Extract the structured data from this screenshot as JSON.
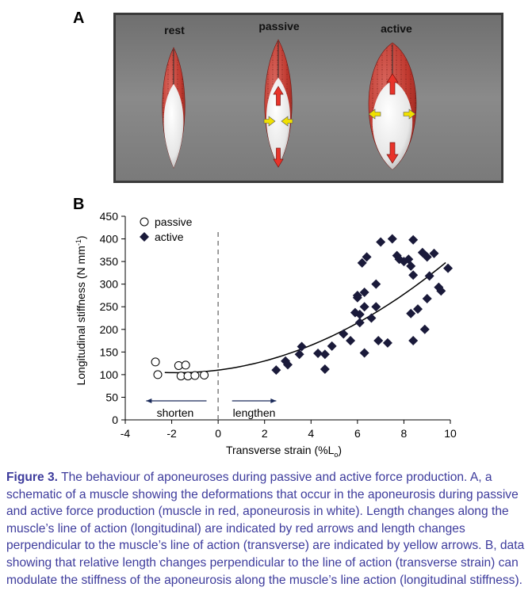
{
  "panel_a": {
    "letter": "A",
    "labels": {
      "rest": "rest",
      "passive": "passive",
      "active": "active"
    },
    "colors": {
      "muscle": "#c5423c",
      "aponeurosis": "#f2f2f2",
      "background": "#7d7d7d",
      "longitudinal_arrow": "#e8332a",
      "transverse_arrow": "#f0e000"
    }
  },
  "panel_b": {
    "letter": "B",
    "shorten_label": "shorten",
    "lengthen_label": "lengthen"
  },
  "chart_data": {
    "type": "scatter",
    "xlabel": "Transverse strain (%L",
    "xlabel_sub": "o",
    "xlabel_end": ")",
    "ylabel": "Longitudinal stiffness (N mm",
    "ylabel_sup": "-1",
    "ylabel_end": ")",
    "xlim": [
      -4,
      10
    ],
    "ylim": [
      0,
      450
    ],
    "xticks": [
      "-4",
      "-2",
      "0",
      "2",
      "4",
      "6",
      "8",
      "10"
    ],
    "xtick_values": [
      -4,
      -2,
      0,
      2,
      4,
      6,
      8,
      10
    ],
    "yticks": [
      "0",
      "50",
      "100",
      "150",
      "200",
      "250",
      "300",
      "350",
      "400",
      "450"
    ],
    "ytick_values": [
      0,
      50,
      100,
      150,
      200,
      250,
      300,
      350,
      400,
      450
    ],
    "legend_position": "top-left",
    "series": [
      {
        "name": "passive",
        "marker": "circle-open",
        "points": [
          [
            -2.7,
            128
          ],
          [
            -2.6,
            100
          ],
          [
            -1.7,
            120
          ],
          [
            -1.4,
            121
          ],
          [
            -1.6,
            97
          ],
          [
            -1.3,
            97
          ],
          [
            -1.0,
            98
          ],
          [
            -0.6,
            99
          ]
        ]
      },
      {
        "name": "active",
        "marker": "diamond-filled",
        "points": [
          [
            2.5,
            110
          ],
          [
            2.9,
            130
          ],
          [
            3.0,
            122
          ],
          [
            3.5,
            145
          ],
          [
            3.6,
            162
          ],
          [
            4.3,
            147
          ],
          [
            4.6,
            112
          ],
          [
            4.6,
            145
          ],
          [
            4.9,
            163
          ],
          [
            5.4,
            190
          ],
          [
            5.7,
            175
          ],
          [
            5.9,
            237
          ],
          [
            6.0,
            270
          ],
          [
            6.0,
            275
          ],
          [
            6.1,
            215
          ],
          [
            6.1,
            233
          ],
          [
            6.2,
            347
          ],
          [
            6.3,
            148
          ],
          [
            6.3,
            282
          ],
          [
            6.3,
            250
          ],
          [
            6.4,
            360
          ],
          [
            6.6,
            225
          ],
          [
            6.8,
            250
          ],
          [
            6.8,
            300
          ],
          [
            6.9,
            175
          ],
          [
            7.0,
            393
          ],
          [
            7.3,
            170
          ],
          [
            7.5,
            400
          ],
          [
            7.7,
            363
          ],
          [
            7.8,
            355
          ],
          [
            8.0,
            350
          ],
          [
            8.2,
            355
          ],
          [
            8.3,
            340
          ],
          [
            8.3,
            235
          ],
          [
            8.4,
            398
          ],
          [
            8.4,
            175
          ],
          [
            8.4,
            320
          ],
          [
            8.6,
            245
          ],
          [
            8.8,
            370
          ],
          [
            8.9,
            200
          ],
          [
            9.0,
            268
          ],
          [
            9.0,
            360
          ],
          [
            9.1,
            318
          ],
          [
            9.3,
            368
          ],
          [
            9.5,
            293
          ],
          [
            9.6,
            285
          ],
          [
            9.9,
            335
          ]
        ]
      }
    ],
    "trend_line": {
      "type": "quadratic-fit",
      "x_range": [
        -2.3,
        9.8
      ],
      "coefficients": [
        110,
        6.46,
        1.815
      ]
    },
    "reference_line": {
      "x": 0,
      "style": "dashed"
    }
  },
  "caption": {
    "label": "Figure 3.",
    "text": "The behaviour of aponeuroses during passive and active force production. A, a schematic of a muscle showing the deformations that occur in the aponeurosis during passive and active force production (muscle in red, aponeurosis in white). Length changes along the muscle’s line of action (longitudinal) are indicated by red arrows and length changes perpendicular to the muscle’s line of action (transverse) are indicated by yellow arrows. B, data showing that relative length changes perpendicular to the line of action (transverse strain) can modulate the stiffness of the aponeurosis along the muscle’s line action (longitudinal stiffness)."
  }
}
